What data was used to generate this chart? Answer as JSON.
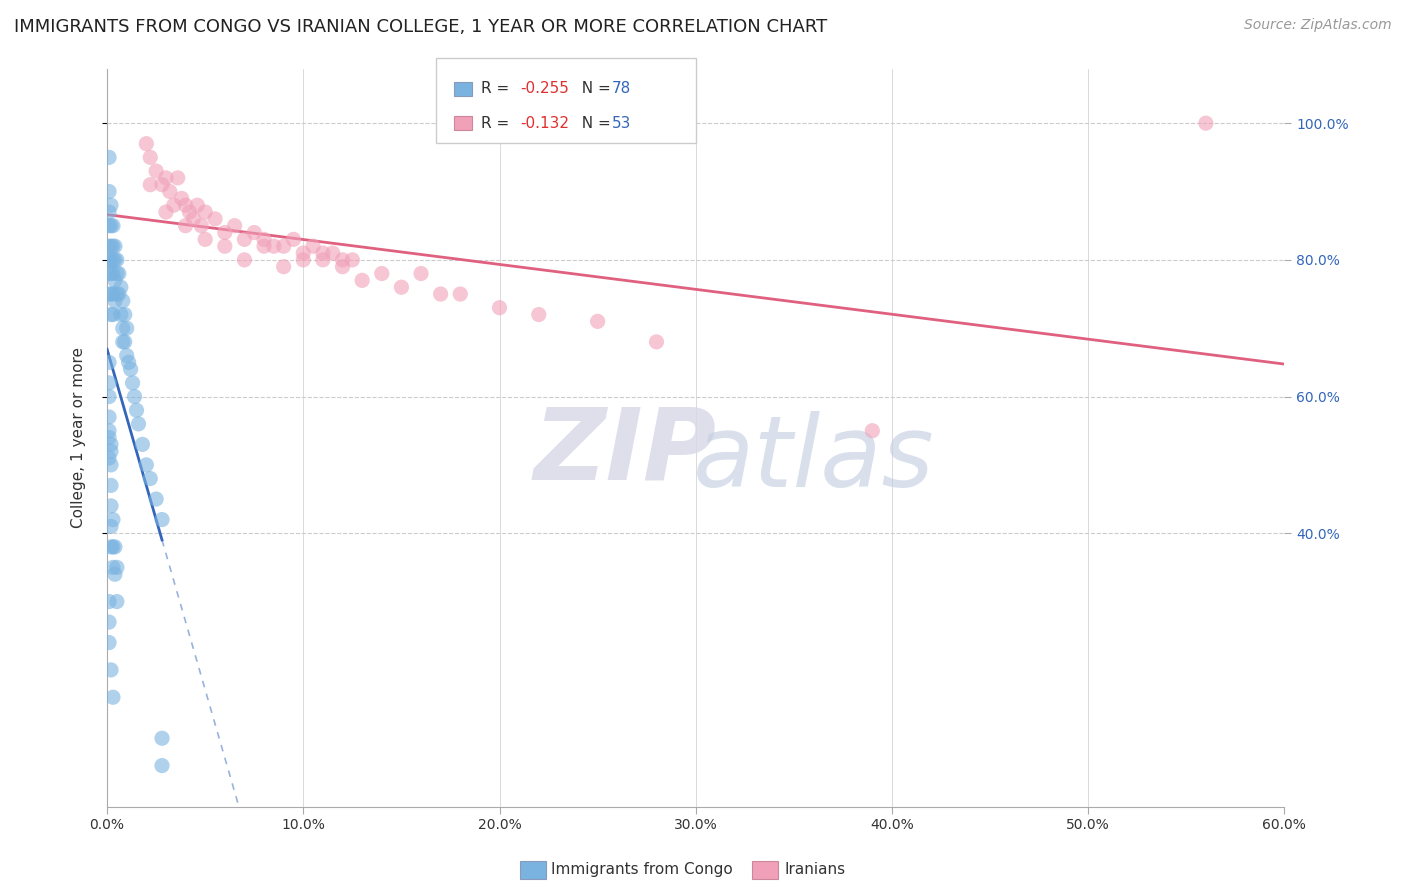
{
  "title": "IMMIGRANTS FROM CONGO VS IRANIAN COLLEGE, 1 YEAR OR MORE CORRELATION CHART",
  "source": "Source: ZipAtlas.com",
  "ylabel": "College, 1 year or more",
  "xlim": [
    0.0,
    0.6
  ],
  "ylim": [
    0.0,
    1.08
  ],
  "xtick_labels": [
    "0.0%",
    "",
    "",
    "",
    "",
    "",
    "",
    "",
    "",
    "",
    "10.0%",
    "",
    "",
    "",
    "",
    "",
    "",
    "",
    "",
    "",
    "20.0%",
    "",
    "",
    "",
    "",
    "",
    "",
    "",
    "",
    "",
    "30.0%",
    "",
    "",
    "",
    "",
    "",
    "",
    "",
    "",
    "",
    "40.0%",
    "",
    "",
    "",
    "",
    "",
    "",
    "",
    "",
    "",
    "50.0%",
    "",
    "",
    "",
    "",
    "",
    "",
    "",
    "",
    "",
    "60.0%"
  ],
  "xtick_vals": [
    0.0,
    0.01,
    0.02,
    0.03,
    0.04,
    0.05,
    0.06,
    0.07,
    0.08,
    0.09,
    0.1,
    0.11,
    0.12,
    0.13,
    0.14,
    0.15,
    0.16,
    0.17,
    0.18,
    0.19,
    0.2,
    0.21,
    0.22,
    0.23,
    0.24,
    0.25,
    0.26,
    0.27,
    0.28,
    0.29,
    0.3,
    0.31,
    0.32,
    0.33,
    0.34,
    0.35,
    0.36,
    0.37,
    0.38,
    0.39,
    0.4,
    0.41,
    0.42,
    0.43,
    0.44,
    0.45,
    0.46,
    0.47,
    0.48,
    0.49,
    0.5,
    0.51,
    0.52,
    0.53,
    0.54,
    0.55,
    0.56,
    0.57,
    0.58,
    0.59,
    0.6
  ],
  "major_xtick_vals": [
    0.0,
    0.1,
    0.2,
    0.3,
    0.4,
    0.5,
    0.6
  ],
  "major_xtick_labels": [
    "0.0%",
    "10.0%",
    "20.0%",
    "30.0%",
    "40.0%",
    "50.0%",
    "60.0%"
  ],
  "ytick_labels": [
    "40.0%",
    "60.0%",
    "80.0%",
    "100.0%"
  ],
  "ytick_vals": [
    0.4,
    0.6,
    0.8,
    1.0
  ],
  "blue_scatter_x": [
    0.001,
    0.001,
    0.001,
    0.001,
    0.001,
    0.001,
    0.001,
    0.001,
    0.002,
    0.002,
    0.002,
    0.002,
    0.002,
    0.002,
    0.002,
    0.003,
    0.003,
    0.003,
    0.003,
    0.003,
    0.003,
    0.004,
    0.004,
    0.004,
    0.004,
    0.005,
    0.005,
    0.005,
    0.006,
    0.006,
    0.007,
    0.007,
    0.008,
    0.008,
    0.008,
    0.009,
    0.009,
    0.01,
    0.01,
    0.011,
    0.012,
    0.013,
    0.014,
    0.015,
    0.016,
    0.018,
    0.02,
    0.022,
    0.025,
    0.028,
    0.001,
    0.001,
    0.001,
    0.001,
    0.001,
    0.001,
    0.002,
    0.002,
    0.002,
    0.002,
    0.002,
    0.002,
    0.003,
    0.003,
    0.003,
    0.004,
    0.004,
    0.005,
    0.005,
    0.001,
    0.001,
    0.001,
    0.002,
    0.003,
    0.028,
    0.028,
    0.001,
    0.002
  ],
  "blue_scatter_y": [
    0.95,
    0.9,
    0.87,
    0.85,
    0.82,
    0.8,
    0.78,
    0.75,
    0.88,
    0.85,
    0.82,
    0.8,
    0.78,
    0.75,
    0.72,
    0.85,
    0.82,
    0.8,
    0.78,
    0.75,
    0.72,
    0.82,
    0.8,
    0.77,
    0.74,
    0.8,
    0.78,
    0.75,
    0.78,
    0.75,
    0.76,
    0.72,
    0.74,
    0.7,
    0.68,
    0.72,
    0.68,
    0.7,
    0.66,
    0.65,
    0.64,
    0.62,
    0.6,
    0.58,
    0.56,
    0.53,
    0.5,
    0.48,
    0.45,
    0.42,
    0.65,
    0.62,
    0.6,
    0.57,
    0.54,
    0.51,
    0.53,
    0.5,
    0.47,
    0.44,
    0.41,
    0.38,
    0.42,
    0.38,
    0.35,
    0.38,
    0.34,
    0.35,
    0.3,
    0.3,
    0.27,
    0.24,
    0.2,
    0.16,
    0.1,
    0.06,
    0.55,
    0.52
  ],
  "pink_scatter_x": [
    0.02,
    0.022,
    0.025,
    0.028,
    0.03,
    0.032,
    0.034,
    0.036,
    0.038,
    0.04,
    0.042,
    0.044,
    0.046,
    0.048,
    0.05,
    0.055,
    0.06,
    0.065,
    0.07,
    0.075,
    0.08,
    0.085,
    0.09,
    0.095,
    0.1,
    0.105,
    0.11,
    0.115,
    0.12,
    0.125,
    0.022,
    0.03,
    0.04,
    0.05,
    0.06,
    0.07,
    0.08,
    0.09,
    0.1,
    0.11,
    0.12,
    0.13,
    0.14,
    0.15,
    0.16,
    0.17,
    0.18,
    0.2,
    0.22,
    0.25,
    0.28,
    0.56,
    0.39
  ],
  "pink_scatter_y": [
    0.97,
    0.95,
    0.93,
    0.91,
    0.92,
    0.9,
    0.88,
    0.92,
    0.89,
    0.88,
    0.87,
    0.86,
    0.88,
    0.85,
    0.87,
    0.86,
    0.84,
    0.85,
    0.83,
    0.84,
    0.83,
    0.82,
    0.82,
    0.83,
    0.81,
    0.82,
    0.8,
    0.81,
    0.8,
    0.8,
    0.91,
    0.87,
    0.85,
    0.83,
    0.82,
    0.8,
    0.82,
    0.79,
    0.8,
    0.81,
    0.79,
    0.77,
    0.78,
    0.76,
    0.78,
    0.75,
    0.75,
    0.73,
    0.72,
    0.71,
    0.68,
    1.0,
    0.55
  ],
  "blue_color": "#7ab3e0",
  "pink_color": "#f0a0b8",
  "blue_line_color": "#3366bb",
  "pink_line_color": "#e06080",
  "grid_color": "#cccccc",
  "background_color": "#ffffff",
  "title_fontsize": 13,
  "axis_label_fontsize": 11,
  "tick_fontsize": 10,
  "legend_fontsize": 11,
  "source_fontsize": 10,
  "legend_R_color": "#e03030",
  "legend_N_color": "#3366bb",
  "legend_text_color": "#333333",
  "watermark_zip_color": "#d8d8e8",
  "watermark_atlas_color": "#c0cce0"
}
